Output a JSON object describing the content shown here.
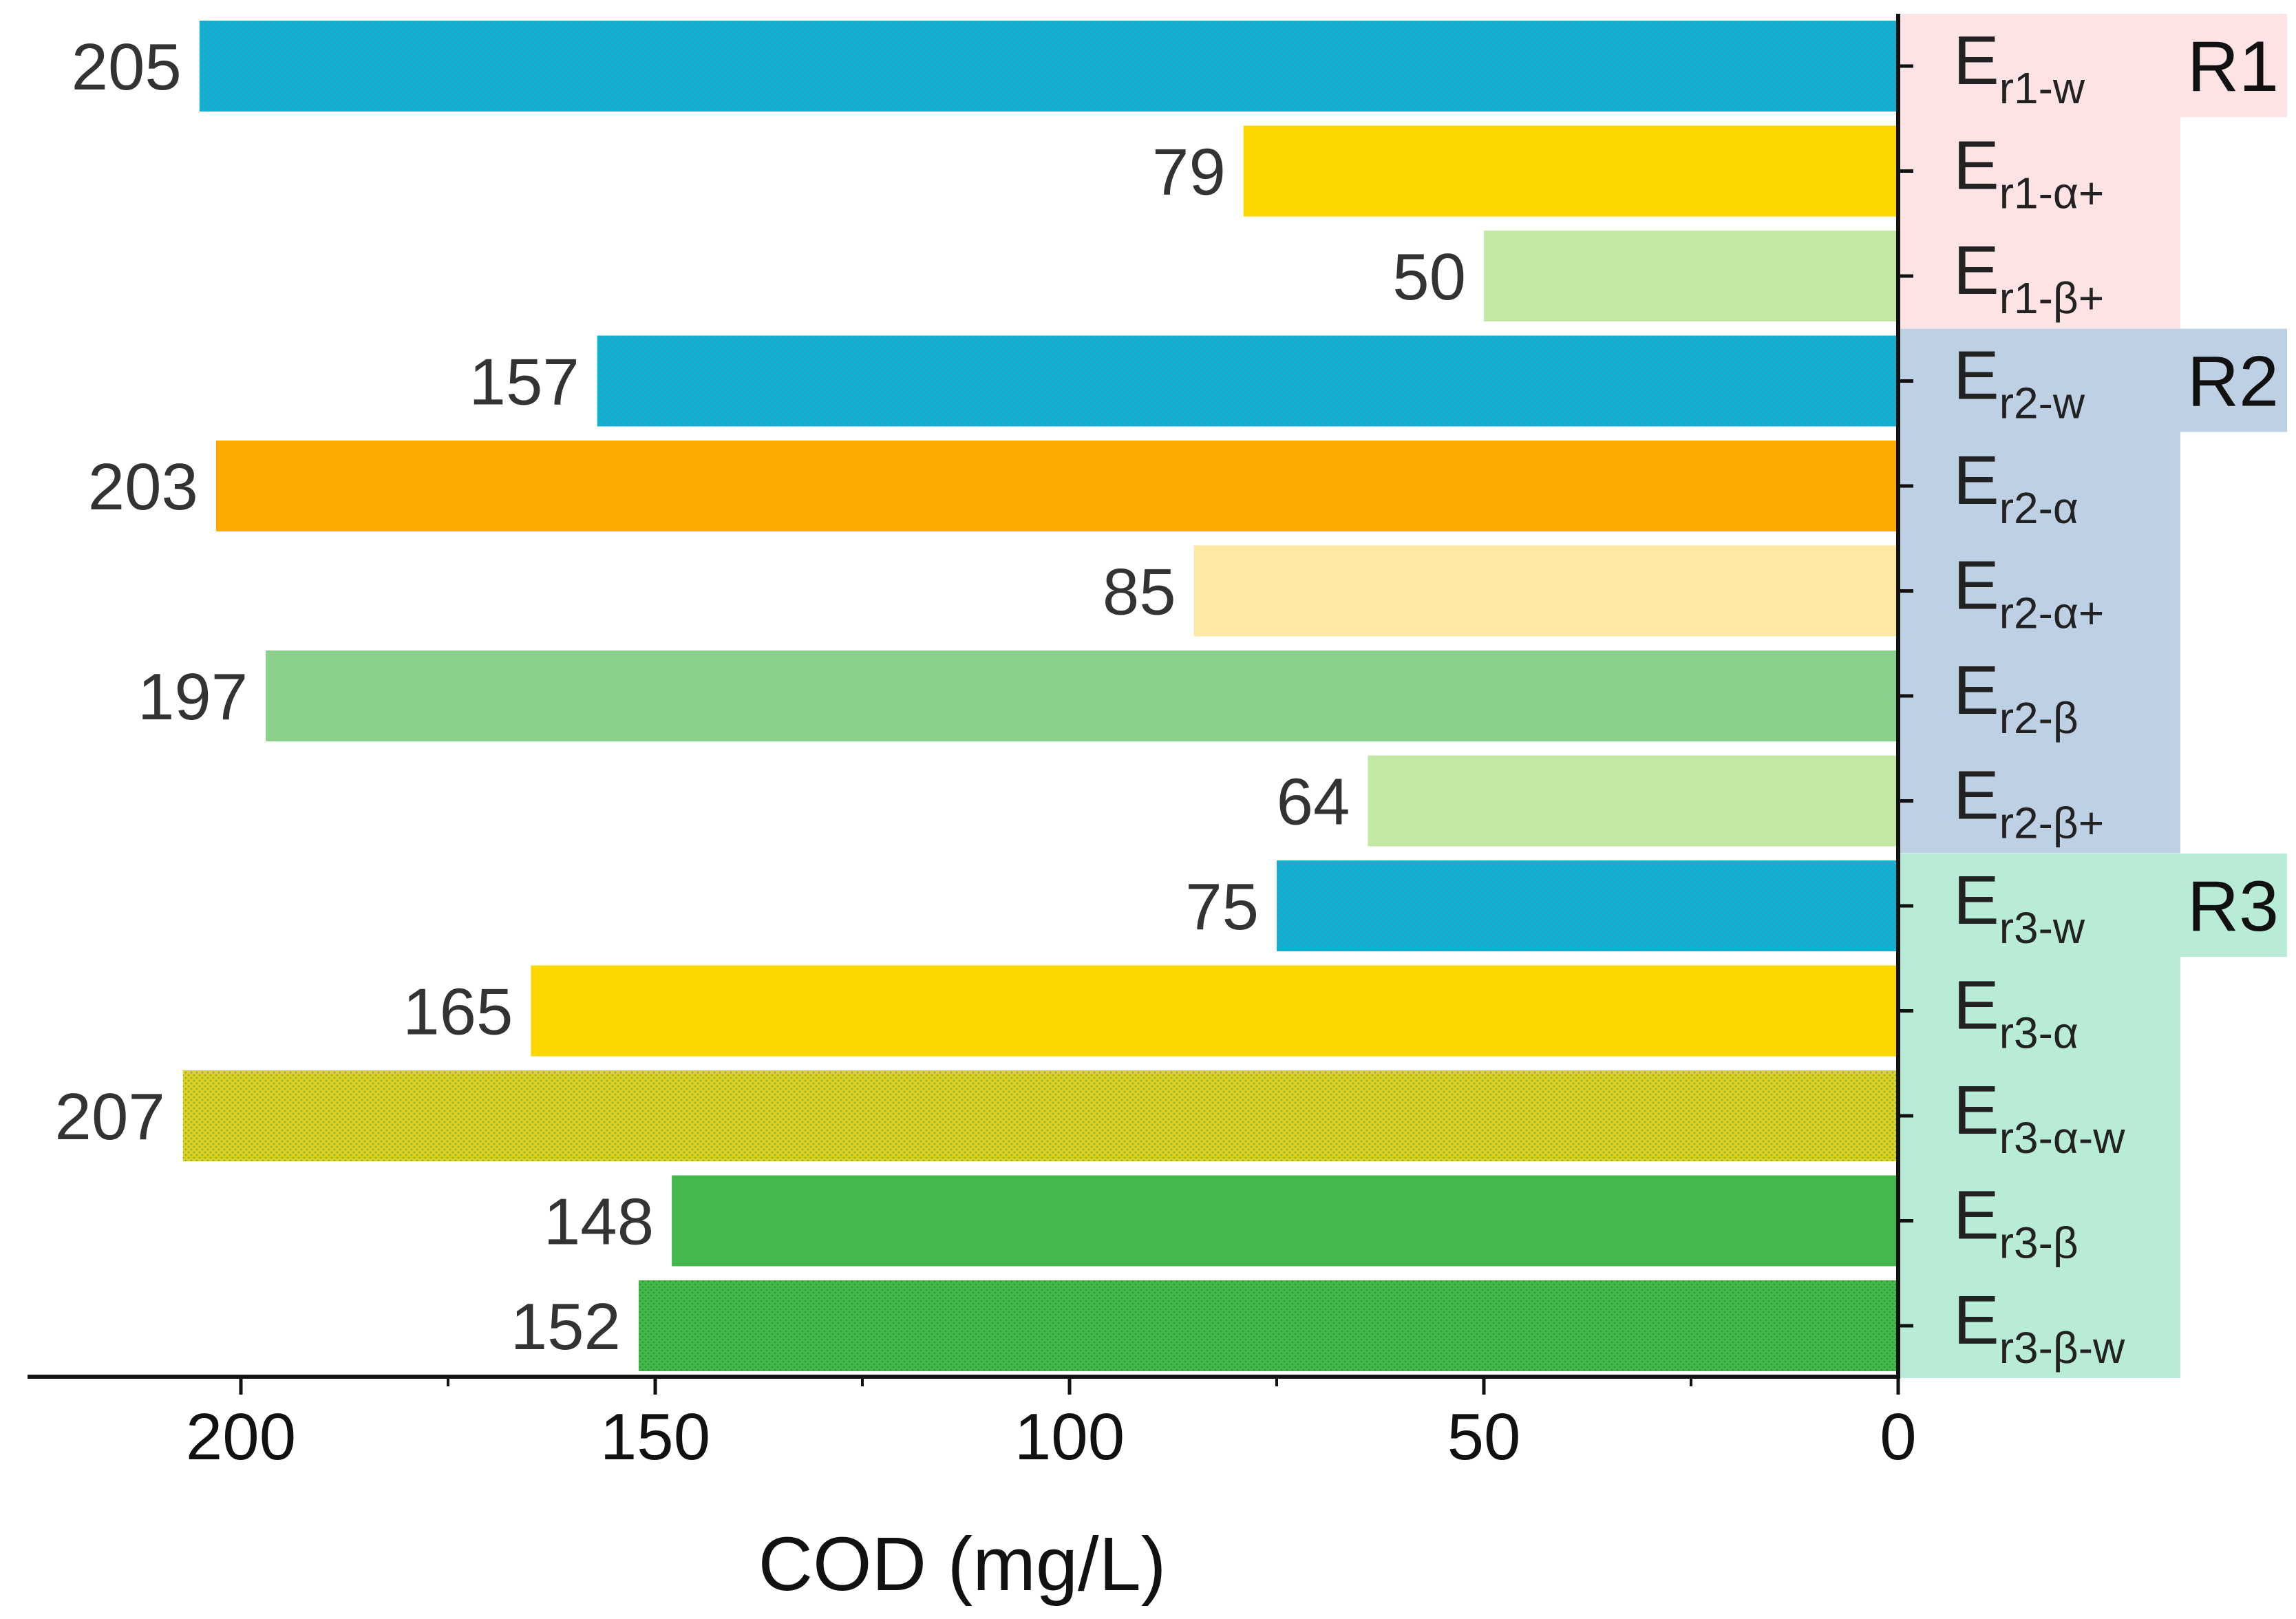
{
  "chart_data": {
    "type": "bar",
    "orientation": "horizontal",
    "xlabel": "COD (mg/L)",
    "xlim": [
      225,
      0
    ],
    "x_ticks": [
      200,
      150,
      100,
      50,
      0
    ],
    "x_tick_labels": [
      "200",
      "150",
      "100",
      "50",
      "0"
    ],
    "groups": [
      {
        "name": "R1",
        "color": "#fde3e3"
      },
      {
        "name": "R2",
        "color": "#bed1e4"
      },
      {
        "name": "R3",
        "color": "#b9ecd6"
      }
    ],
    "bars": [
      {
        "main": "E",
        "sub": "r1-w",
        "group": 0,
        "value": 205,
        "label": "205",
        "color": "#0cb4d4",
        "pattern": "dots-blue"
      },
      {
        "main": "E",
        "sub": "r1-α+",
        "group": 0,
        "value": 79,
        "label": "79",
        "color": "#fdd600",
        "pattern": ""
      },
      {
        "main": "E",
        "sub": "r1-β+",
        "group": 0,
        "value": 50,
        "label": "50",
        "color": "#c2e8a3",
        "pattern": ""
      },
      {
        "main": "E",
        "sub": "r2-w",
        "group": 1,
        "value": 157,
        "label": "157",
        "color": "#0cb4d4",
        "pattern": "dots-blue"
      },
      {
        "main": "E",
        "sub": "r2-α",
        "group": 1,
        "value": 203,
        "label": "203",
        "color": "#fdab00",
        "pattern": ""
      },
      {
        "main": "E",
        "sub": "r2-α+",
        "group": 1,
        "value": 85,
        "label": "85",
        "color": "#fde9a3",
        "pattern": ""
      },
      {
        "main": "E",
        "sub": "r2-β",
        "group": 1,
        "value": 197,
        "label": "197",
        "color": "#8ad08a",
        "pattern": ""
      },
      {
        "main": "E",
        "sub": "r2-β+",
        "group": 1,
        "value": 64,
        "label": "64",
        "color": "#c2e8a3",
        "pattern": ""
      },
      {
        "main": "E",
        "sub": "r3-w",
        "group": 2,
        "value": 75,
        "label": "75",
        "color": "#0cb4d4",
        "pattern": "dots-blue"
      },
      {
        "main": "E",
        "sub": "r3-α",
        "group": 2,
        "value": 165,
        "label": "165",
        "color": "#fdd600",
        "pattern": ""
      },
      {
        "main": "E",
        "sub": "r3-α-w",
        "group": 2,
        "value": 207,
        "label": "207",
        "color": "#d7cc2a",
        "pattern": "dots-olive"
      },
      {
        "main": "E",
        "sub": "r3-β",
        "group": 2,
        "value": 148,
        "label": "148",
        "color": "#45b84c",
        "pattern": ""
      },
      {
        "main": "E",
        "sub": "r3-β-w",
        "group": 2,
        "value": 152,
        "label": "152",
        "color": "#45b84c",
        "pattern": "dots-green"
      }
    ]
  }
}
